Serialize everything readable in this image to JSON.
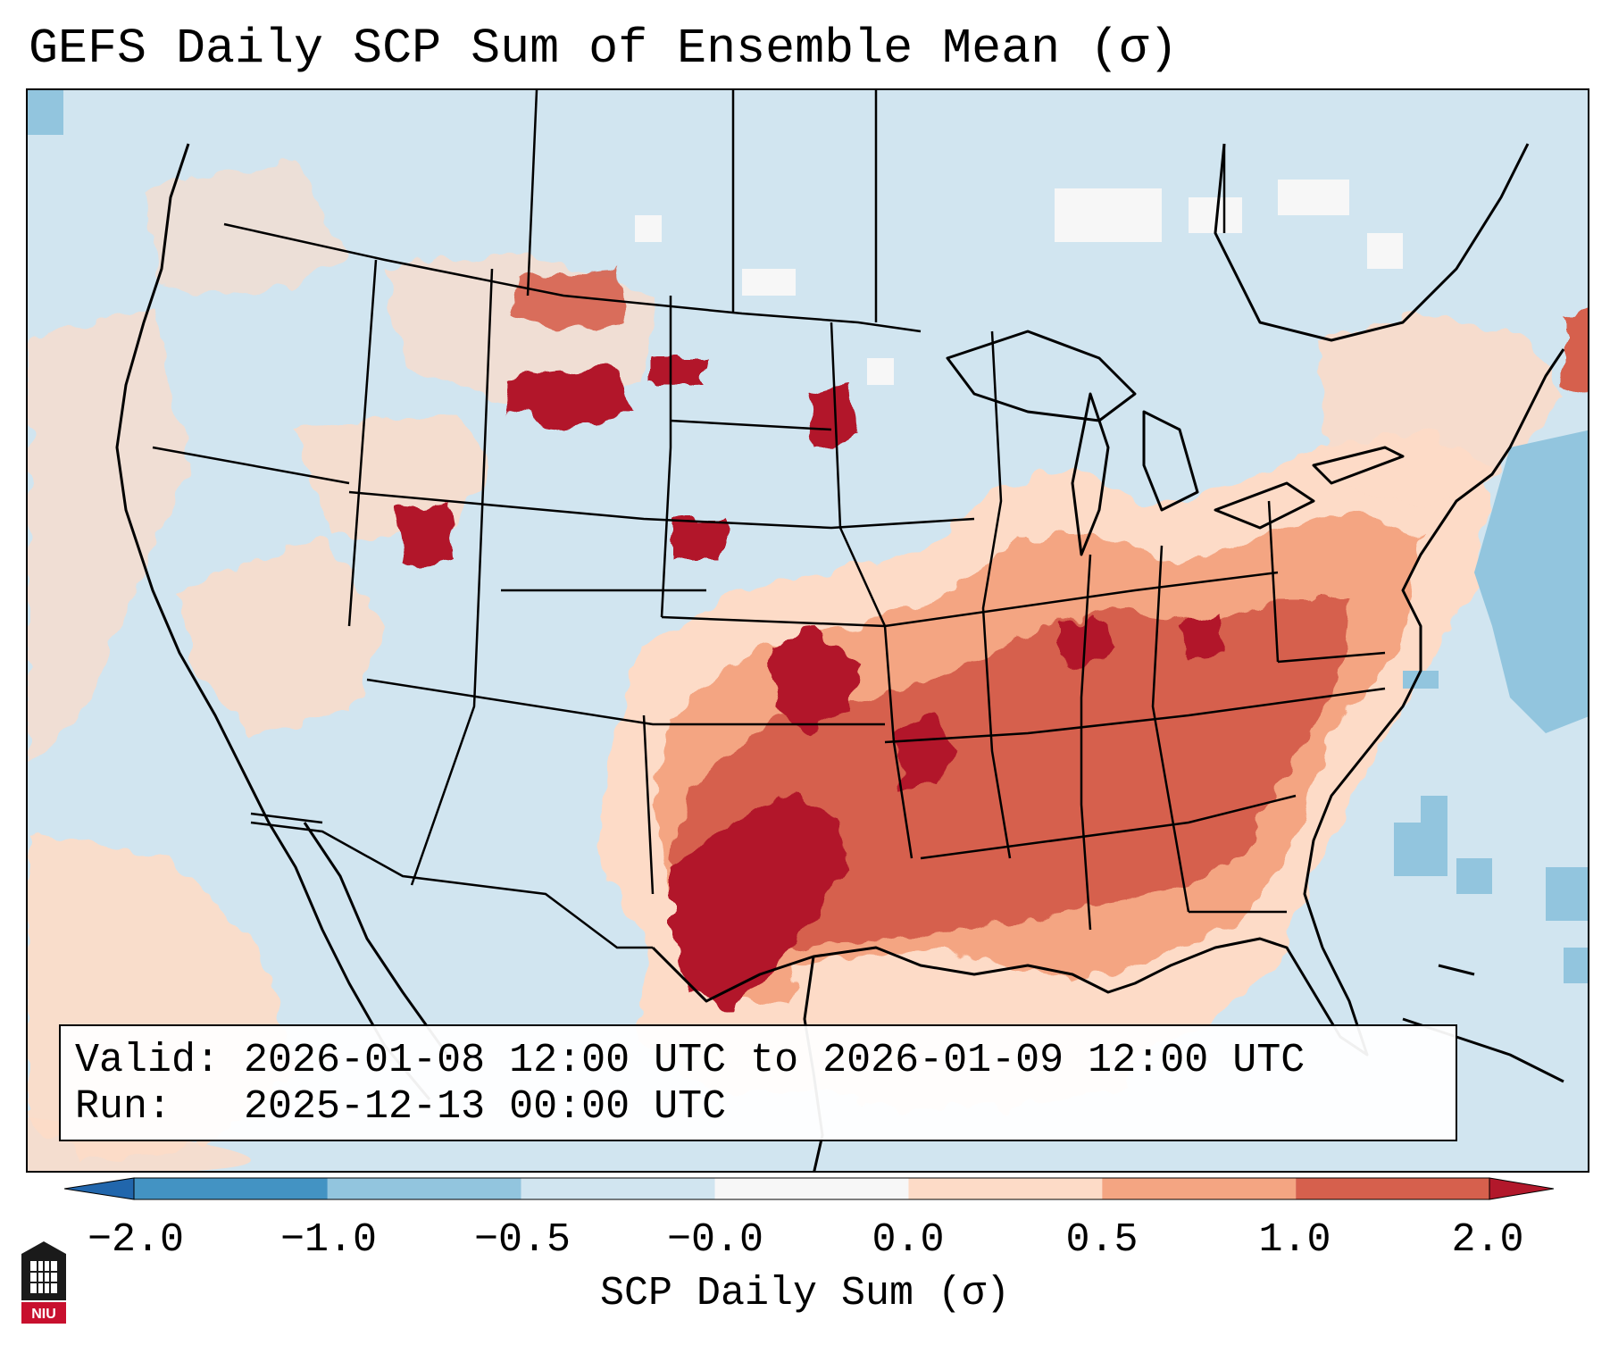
{
  "title": "GEFS Daily SCP Sum of Ensemble Mean (σ)",
  "map": {
    "description_colors": {
      "land_base": "#d1e5f0",
      "no_signal": "#f7f7f7",
      "weak_positive": "#fddbc7",
      "moderate_positive": "#f4a582",
      "strong_positive": "#d6604d",
      "extreme_positive": "#b2182b",
      "weak_negative": "#92c5de",
      "border": "#000000"
    }
  },
  "info": {
    "valid_line": "Valid: 2026-01-08 12:00 UTC to 2026-01-09 12:00 UTC",
    "run_line": "Run:   2025-12-13 00:00 UTC"
  },
  "colorbar": {
    "label": "SCP Daily Sum (σ)",
    "ticks": [
      "−2.0",
      "−1.0",
      "−0.5",
      "−0.0",
      "0.0",
      "0.5",
      "1.0",
      "2.0"
    ],
    "colors": [
      "#4393c3",
      "#92c5de",
      "#d1e5f0",
      "#f7f7f7",
      "#fddbc7",
      "#f4a582",
      "#d6604d"
    ],
    "extend_low": "#2166ac",
    "extend_high": "#b2182b"
  },
  "logo": {
    "icon": "niu-logo-icon",
    "text": "NIU",
    "color": "#c8102e"
  }
}
